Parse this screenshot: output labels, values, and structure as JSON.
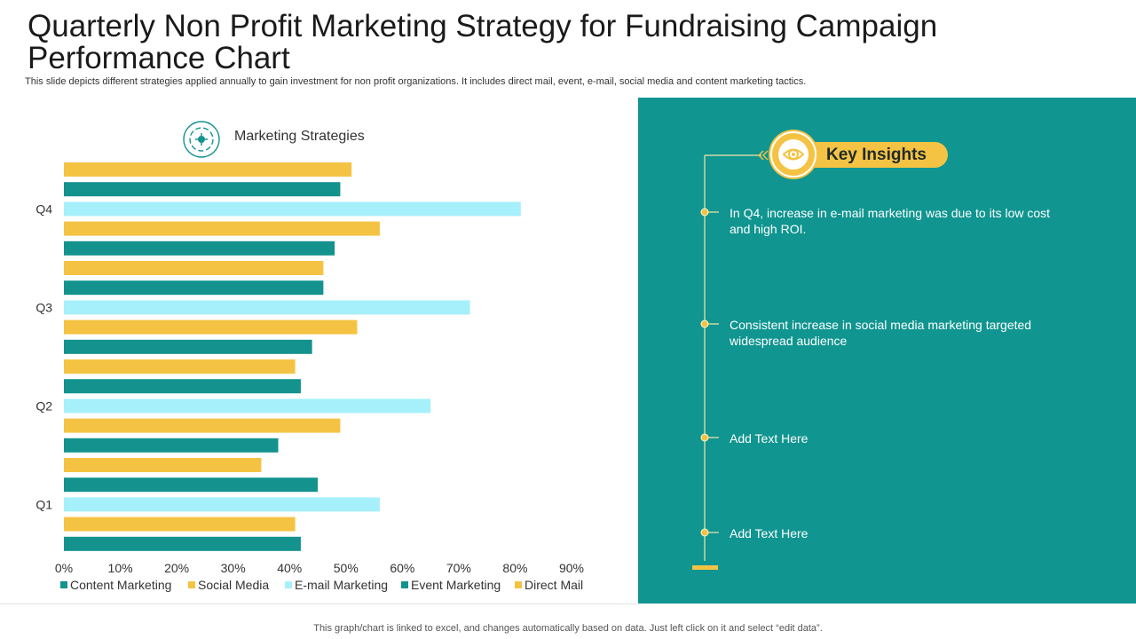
{
  "header": {
    "title": "Quarterly Non Profit Marketing Strategy for Fundraising Campaign Performance Chart",
    "subtitle": "This slide depicts different strategies applied annually to gain investment for non profit organizations. It includes direct mail, event, e-mail, social media and content marketing tactics."
  },
  "chart_data": {
    "type": "bar",
    "orientation": "horizontal",
    "title": "Marketing Strategies",
    "categories": [
      "Q1",
      "Q2",
      "Q3",
      "Q4"
    ],
    "series": [
      {
        "name": "Content Marketing",
        "color": "#13928e",
        "values": [
          42,
          38,
          44,
          48
        ]
      },
      {
        "name": "Social Media",
        "color": "#f5c343",
        "values": [
          41,
          49,
          52,
          56
        ]
      },
      {
        "name": "E-mail Marketing",
        "color": "#a6f0fb",
        "values": [
          56,
          65,
          72,
          81
        ]
      },
      {
        "name": "Event Marketing",
        "color": "#13928e",
        "values": [
          45,
          42,
          46,
          49
        ]
      },
      {
        "name": "Direct Mail",
        "color": "#f5c343",
        "values": [
          35,
          41,
          46,
          51
        ]
      }
    ],
    "xlim": [
      0,
      90
    ],
    "xticks": [
      "0%",
      "10%",
      "20%",
      "30%",
      "40%",
      "50%",
      "60%",
      "70%",
      "80%",
      "90%"
    ],
    "legend_position": "bottom",
    "grid": false
  },
  "insights": {
    "heading": "Key Insights",
    "icon": "eye-icon",
    "items": [
      "In Q4, increase in e-mail marketing was due to its low cost and high ROI.",
      "Consistent increase in social media marketing targeted widespread audience",
      "Add Text Here",
      "Add Text Here"
    ]
  },
  "footer": {
    "note": "This graph/chart is linked to excel,  and changes automatically based on data. Just left click on it and select “edit data”."
  },
  "colors": {
    "panel": "#109590",
    "accent": "#f5c343",
    "teal": "#13928e",
    "light_blue": "#a6f0fb"
  }
}
